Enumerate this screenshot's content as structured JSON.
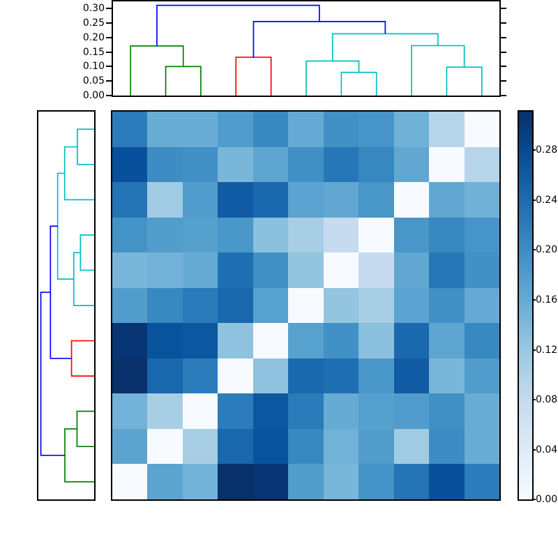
{
  "figure": {
    "background_color": "#ffffff",
    "description": "Hierarchically clustered distance-matrix heatmap with top and left dendrograms and a vertical colorbar"
  },
  "chart_data": {
    "type": "heatmap",
    "n": 11,
    "colormap": "Blues",
    "vmin": 0.0,
    "vmax": 0.311,
    "grid": false,
    "note": "rows are displayed in reverse order of columns, so the zero-distance diagonal runs from top-right to bottom-left",
    "matrix": [
      [
        0.22,
        0.157,
        0.157,
        0.181,
        0.205,
        0.161,
        0.195,
        0.19,
        0.152,
        0.093,
        0.0
      ],
      [
        0.273,
        0.2,
        0.197,
        0.144,
        0.168,
        0.197,
        0.226,
        0.207,
        0.165,
        0.0,
        0.093
      ],
      [
        0.23,
        0.115,
        0.18,
        0.26,
        0.244,
        0.171,
        0.165,
        0.188,
        0.0,
        0.165,
        0.152
      ],
      [
        0.193,
        0.179,
        0.175,
        0.187,
        0.132,
        0.108,
        0.077,
        0.0,
        0.188,
        0.207,
        0.19
      ],
      [
        0.144,
        0.15,
        0.16,
        0.236,
        0.195,
        0.124,
        0.0,
        0.077,
        0.165,
        0.226,
        0.195
      ],
      [
        0.179,
        0.206,
        0.222,
        0.244,
        0.174,
        0.0,
        0.124,
        0.108,
        0.171,
        0.197,
        0.161
      ],
      [
        0.305,
        0.27,
        0.265,
        0.128,
        0.0,
        0.174,
        0.195,
        0.132,
        0.244,
        0.168,
        0.205
      ],
      [
        0.311,
        0.246,
        0.22,
        0.0,
        0.128,
        0.244,
        0.236,
        0.187,
        0.26,
        0.144,
        0.181
      ],
      [
        0.15,
        0.108,
        0.0,
        0.22,
        0.265,
        0.222,
        0.16,
        0.175,
        0.18,
        0.197,
        0.157
      ],
      [
        0.17,
        0.0,
        0.108,
        0.246,
        0.27,
        0.206,
        0.15,
        0.179,
        0.115,
        0.2,
        0.157
      ],
      [
        0.0,
        0.17,
        0.15,
        0.311,
        0.305,
        0.179,
        0.144,
        0.193,
        0.23,
        0.273,
        0.22
      ]
    ],
    "colormap_stops": [
      [
        0.0,
        "#f7fbff"
      ],
      [
        0.125,
        "#deebf7"
      ],
      [
        0.25,
        "#c6dbef"
      ],
      [
        0.375,
        "#9ecae1"
      ],
      [
        0.5,
        "#6baed6"
      ],
      [
        0.625,
        "#4292c6"
      ],
      [
        0.75,
        "#2171b5"
      ],
      [
        0.875,
        "#08519c"
      ],
      [
        1.0,
        "#08306b"
      ]
    ],
    "top_axis_ticks": [
      {
        "label": "0.00",
        "value": 0.0
      },
      {
        "label": "0.05",
        "value": 0.05
      },
      {
        "label": "0.10",
        "value": 0.1
      },
      {
        "label": "0.15",
        "value": 0.15
      },
      {
        "label": "0.20",
        "value": 0.2
      },
      {
        "label": "0.25",
        "value": 0.25
      },
      {
        "label": "0.30",
        "value": 0.3
      }
    ],
    "top_axis_range": [
      0.0,
      0.3245
    ],
    "left_axis_range": [
      0.0,
      0.3255
    ],
    "colorbar_ticks": [
      {
        "label": "0.00",
        "value": 0.0
      },
      {
        "label": "0.04",
        "value": 0.04
      },
      {
        "label": "0.08",
        "value": 0.08
      },
      {
        "label": "0.12",
        "value": 0.12
      },
      {
        "label": "0.16",
        "value": 0.16
      },
      {
        "label": "0.20",
        "value": 0.2
      },
      {
        "label": "0.24",
        "value": 0.24
      },
      {
        "label": "0.28",
        "value": 0.28
      }
    ],
    "dendrogram_colors": {
      "green": "#008000",
      "red": "#ff0000",
      "cyan": "#00bfbf",
      "blue": "#0000ff"
    },
    "dendrogram_merges": [
      {
        "left": "L6",
        "right": "L7",
        "height": 0.08,
        "color": "cyan"
      },
      {
        "left": "L9",
        "right": "L10",
        "height": 0.098,
        "color": "cyan"
      },
      {
        "left": "L1",
        "right": "L2",
        "height": 0.1,
        "color": "green"
      },
      {
        "left": "L5",
        "right": "M0",
        "height": 0.119,
        "color": "cyan"
      },
      {
        "left": "L3",
        "right": "L4",
        "height": 0.132,
        "color": "red"
      },
      {
        "left": "L0",
        "right": "M2",
        "height": 0.171,
        "color": "green"
      },
      {
        "left": "L8",
        "right": "M1",
        "height": 0.172,
        "color": "cyan"
      },
      {
        "left": "M3",
        "right": "M6",
        "height": 0.213,
        "color": "cyan"
      },
      {
        "left": "M4",
        "right": "M7",
        "height": 0.255,
        "color": "blue"
      },
      {
        "left": "M5",
        "right": "M8",
        "height": 0.311,
        "color": "blue"
      }
    ]
  }
}
